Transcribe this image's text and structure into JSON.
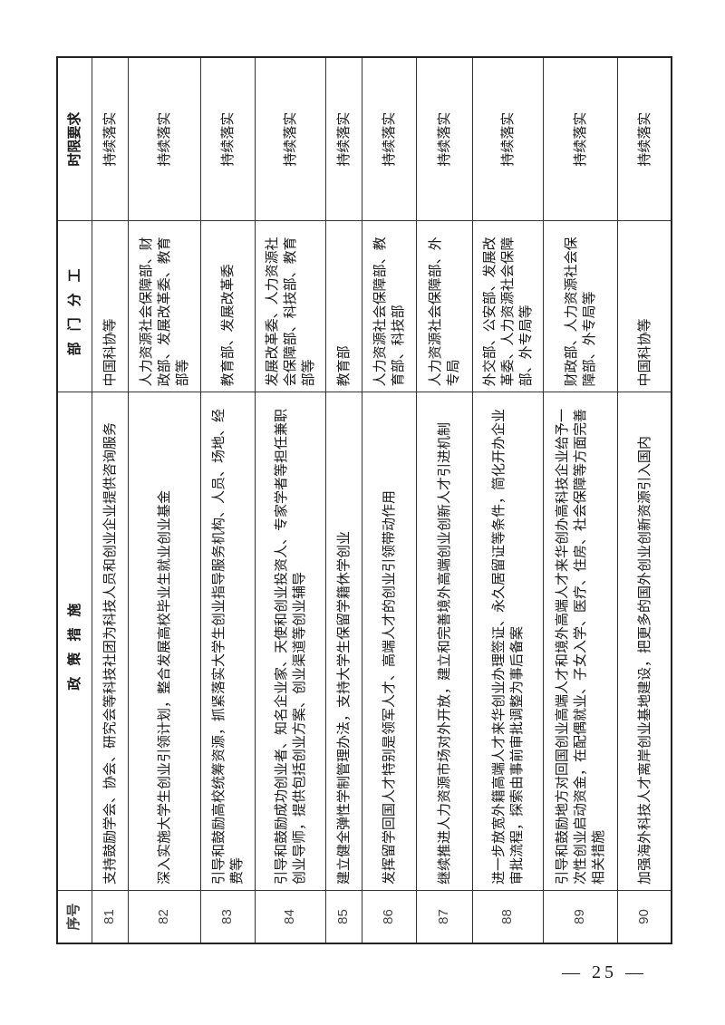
{
  "header": {
    "no": "序号",
    "policy": "政策措施",
    "dept": "部门分工",
    "time": "时限要求"
  },
  "rows": [
    {
      "no": "81",
      "policy": "支持鼓励学会、协会、研究会等科技社团为科技人员和创业企业提供咨询服务",
      "dept": "中国科协等",
      "time": "持续落实"
    },
    {
      "no": "82",
      "policy": "深入实施大学生创业引领计划，整合发展高校毕业生就业创业基金",
      "dept": "人力资源社会保障部、财政部、发展改革委、教育部等",
      "time": "持续落实"
    },
    {
      "no": "83",
      "policy": "引导和鼓励高校统筹资源，抓紧落实大学生创业指导服务机构、人员、场地、经费等",
      "dept": "教育部、发展改革委",
      "time": "持续落实"
    },
    {
      "no": "84",
      "policy": "引导和鼓励成功创业者、知名企业家、天使和创业投资人、专家学者等担任兼职创业导师，提供包括创业方案、创业渠道等创业辅导",
      "dept": "发展改革委、人力资源社会保障部、科技部、教育部等",
      "time": "持续落实"
    },
    {
      "no": "85",
      "policy": "建立健全弹性学制管理办法，支持大学生保留学籍休学创业",
      "dept": "教育部",
      "time": "持续落实"
    },
    {
      "no": "86",
      "policy": "发挥留学回国人才特别是领军人才、高端人才的创业引领带动作用",
      "dept": "人力资源社会保障部、教育部、科技部",
      "time": "持续落实"
    },
    {
      "no": "87",
      "policy": "继续推进人力资源市场对外开放，建立和完善境外高端创业创新人才引进机制",
      "dept": "人力资源社会保障部、外专局",
      "time": "持续落实"
    },
    {
      "no": "88",
      "policy": "进一步放宽外籍高端人才来华创业办理签证、永久居留证等条件，简化开办企业审批流程，探索由事前审批调整为事后备案",
      "dept": "外交部、公安部、发展改革委、人力资源社会保障部、外专局等",
      "time": "持续落实"
    },
    {
      "no": "89",
      "policy": "引导和鼓励地方对回国创业高端人才和境外高端人才来华创办高科技企业给予一次性创业启动资金，在配偶就业、子女入学、医疗、住房、社会保障等方面完善相关措施",
      "dept": "财政部、人力资源社会保障部、外专局等",
      "time": "持续落实"
    },
    {
      "no": "90",
      "policy": "加强海外科技人才离岸创业基地建设，把更多的国外创业创新资源引入国内",
      "dept": "中国科协等",
      "time": "持续落实"
    }
  ],
  "page_number": "— 25 —"
}
